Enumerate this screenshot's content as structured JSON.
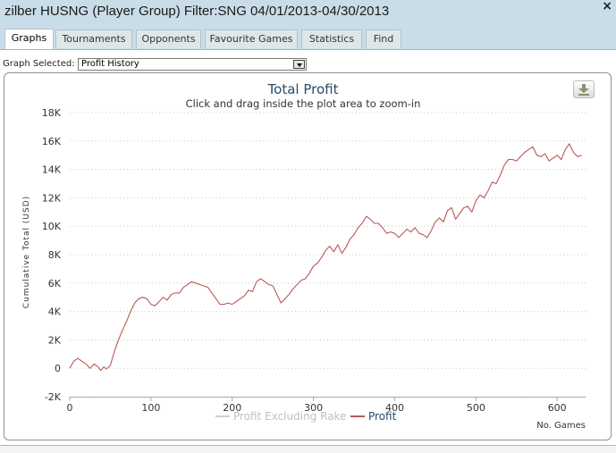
{
  "window": {
    "title": "zilber HUSNG (Player Group) Filter:SNG 04/01/2013-04/30/2013",
    "close_symbol": "×"
  },
  "tabs": [
    {
      "label": "Graphs",
      "active": true
    },
    {
      "label": "Tournaments",
      "active": false
    },
    {
      "label": "Opponents",
      "active": false
    },
    {
      "label": "Favourite Games",
      "active": false
    },
    {
      "label": "Statistics",
      "active": false
    },
    {
      "label": "Find",
      "active": false
    }
  ],
  "graph_selector": {
    "label": "Graph Selected:",
    "value": "Profit History"
  },
  "export_button": {
    "icon": "download-icon",
    "color": "#8f8f6a"
  },
  "chart_data": {
    "type": "line",
    "title": "Total Profit",
    "subtitle": "Click and drag inside the plot area to zoom-in",
    "xlabel": "No. Games",
    "ylabel": "Cumulative Total (USD)",
    "xlim": [
      0,
      635
    ],
    "ylim": [
      -2000,
      18000
    ],
    "x_ticks": [
      0,
      100,
      200,
      300,
      400,
      500,
      600
    ],
    "x_tick_labels": [
      "0",
      "100",
      "200",
      "300",
      "400",
      "500",
      "600"
    ],
    "y_ticks": [
      -2000,
      0,
      2000,
      4000,
      6000,
      8000,
      10000,
      12000,
      14000,
      16000,
      18000
    ],
    "y_tick_labels": [
      "-2K",
      "0",
      "2K",
      "4K",
      "6K",
      "8K",
      "10K",
      "12K",
      "14K",
      "16K",
      "18K"
    ],
    "grid": true,
    "legend_position": "bottom-center",
    "series": [
      {
        "name": "Profit Excluding Rake",
        "color": "#cfcfcf",
        "hidden": true,
        "points": []
      },
      {
        "name": "Profit",
        "color": "#b65a58",
        "points": [
          [
            0,
            0
          ],
          [
            5,
            500
          ],
          [
            10,
            700
          ],
          [
            15,
            500
          ],
          [
            20,
            300
          ],
          [
            25,
            0
          ],
          [
            30,
            300
          ],
          [
            35,
            100
          ],
          [
            38,
            -150
          ],
          [
            42,
            100
          ],
          [
            45,
            -50
          ],
          [
            50,
            200
          ],
          [
            55,
            1200
          ],
          [
            60,
            2000
          ],
          [
            65,
            2700
          ],
          [
            70,
            3300
          ],
          [
            75,
            4000
          ],
          [
            80,
            4600
          ],
          [
            85,
            4900
          ],
          [
            90,
            5000
          ],
          [
            95,
            4900
          ],
          [
            100,
            4500
          ],
          [
            105,
            4400
          ],
          [
            110,
            4700
          ],
          [
            115,
            5000
          ],
          [
            120,
            4800
          ],
          [
            125,
            5200
          ],
          [
            130,
            5300
          ],
          [
            135,
            5300
          ],
          [
            140,
            5700
          ],
          [
            145,
            5900
          ],
          [
            150,
            6100
          ],
          [
            155,
            6000
          ],
          [
            160,
            5900
          ],
          [
            165,
            5800
          ],
          [
            170,
            5700
          ],
          [
            175,
            5300
          ],
          [
            180,
            4900
          ],
          [
            185,
            4500
          ],
          [
            190,
            4500
          ],
          [
            195,
            4600
          ],
          [
            200,
            4500
          ],
          [
            205,
            4700
          ],
          [
            210,
            4900
          ],
          [
            215,
            5100
          ],
          [
            220,
            5500
          ],
          [
            225,
            5400
          ],
          [
            230,
            6100
          ],
          [
            235,
            6300
          ],
          [
            240,
            6100
          ],
          [
            245,
            5900
          ],
          [
            250,
            5800
          ],
          [
            255,
            5200
          ],
          [
            260,
            4600
          ],
          [
            265,
            4900
          ],
          [
            270,
            5200
          ],
          [
            275,
            5600
          ],
          [
            280,
            5900
          ],
          [
            285,
            6200
          ],
          [
            290,
            6300
          ],
          [
            295,
            6700
          ],
          [
            300,
            7200
          ],
          [
            305,
            7400
          ],
          [
            310,
            7800
          ],
          [
            315,
            8300
          ],
          [
            320,
            8600
          ],
          [
            325,
            8200
          ],
          [
            330,
            8700
          ],
          [
            335,
            8100
          ],
          [
            340,
            8500
          ],
          [
            345,
            9100
          ],
          [
            350,
            9400
          ],
          [
            355,
            9900
          ],
          [
            360,
            10200
          ],
          [
            365,
            10700
          ],
          [
            370,
            10500
          ],
          [
            375,
            10200
          ],
          [
            380,
            10200
          ],
          [
            385,
            9900
          ],
          [
            390,
            9500
          ],
          [
            395,
            9600
          ],
          [
            400,
            9500
          ],
          [
            405,
            9200
          ],
          [
            410,
            9500
          ],
          [
            415,
            9800
          ],
          [
            420,
            9600
          ],
          [
            425,
            9900
          ],
          [
            430,
            9500
          ],
          [
            435,
            9400
          ],
          [
            440,
            9200
          ],
          [
            445,
            9700
          ],
          [
            450,
            10300
          ],
          [
            455,
            10600
          ],
          [
            460,
            10300
          ],
          [
            465,
            11100
          ],
          [
            470,
            11300
          ],
          [
            475,
            10500
          ],
          [
            480,
            10900
          ],
          [
            485,
            11300
          ],
          [
            490,
            11400
          ],
          [
            495,
            11000
          ],
          [
            500,
            11800
          ],
          [
            505,
            12200
          ],
          [
            510,
            12000
          ],
          [
            515,
            12500
          ],
          [
            520,
            13100
          ],
          [
            525,
            13000
          ],
          [
            530,
            13600
          ],
          [
            535,
            14300
          ],
          [
            540,
            14700
          ],
          [
            545,
            14700
          ],
          [
            550,
            14600
          ],
          [
            555,
            14900
          ],
          [
            560,
            15200
          ],
          [
            565,
            15400
          ],
          [
            570,
            15600
          ],
          [
            575,
            15000
          ],
          [
            580,
            14900
          ],
          [
            585,
            15100
          ],
          [
            590,
            14600
          ],
          [
            595,
            14800
          ],
          [
            600,
            15000
          ],
          [
            605,
            14700
          ],
          [
            610,
            15400
          ],
          [
            615,
            15800
          ],
          [
            620,
            15200
          ],
          [
            625,
            14900
          ],
          [
            630,
            15000
          ]
        ]
      }
    ]
  }
}
